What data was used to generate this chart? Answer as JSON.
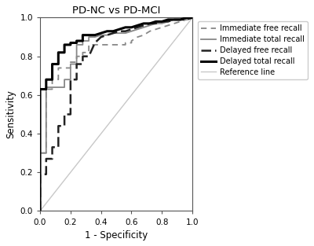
{
  "title": "PD-NC vs PD-MCI",
  "xlabel": "1 - Specificity",
  "ylabel": "Sensitivity",
  "xlim": [
    0.0,
    1.0
  ],
  "ylim": [
    0.0,
    1.0
  ],
  "xticks": [
    0.0,
    0.2,
    0.4,
    0.6,
    0.8,
    1.0
  ],
  "yticks": [
    0.0,
    0.2,
    0.4,
    0.6,
    0.8,
    1.0
  ],
  "reference_line_color": "#C8C8C8",
  "immediate_free_recall": {
    "x": [
      0.0,
      0.0,
      0.04,
      0.04,
      0.08,
      0.08,
      0.12,
      0.12,
      0.16,
      0.2,
      0.2,
      0.24,
      0.24,
      0.28,
      0.28,
      0.32,
      0.32,
      0.56,
      0.56,
      0.6,
      0.6,
      0.64,
      0.68,
      0.72,
      0.76,
      0.8,
      0.84,
      0.88,
      0.92,
      0.96,
      1.0
    ],
    "y": [
      0.0,
      0.3,
      0.3,
      0.63,
      0.63,
      0.68,
      0.68,
      0.74,
      0.74,
      0.74,
      0.77,
      0.77,
      0.8,
      0.8,
      0.82,
      0.82,
      0.86,
      0.86,
      0.87,
      0.87,
      0.88,
      0.9,
      0.91,
      0.93,
      0.94,
      0.95,
      0.96,
      0.97,
      0.98,
      0.99,
      1.0
    ],
    "color": "#888888",
    "linestyle": "dashed",
    "linewidth": 1.3,
    "label": "Immediate free recall"
  },
  "immediate_total_recall": {
    "x": [
      0.0,
      0.0,
      0.04,
      0.04,
      0.16,
      0.16,
      0.2,
      0.2,
      0.24,
      0.24,
      0.28,
      0.28,
      0.32,
      0.32,
      0.36,
      0.4,
      0.44,
      0.48,
      0.52,
      0.56,
      0.6,
      0.64,
      0.68,
      0.72,
      0.76,
      0.8,
      0.84,
      0.88,
      0.92,
      0.96,
      1.0
    ],
    "y": [
      0.0,
      0.3,
      0.3,
      0.64,
      0.64,
      0.68,
      0.68,
      0.76,
      0.76,
      0.86,
      0.86,
      0.88,
      0.88,
      0.9,
      0.9,
      0.91,
      0.91,
      0.92,
      0.92,
      0.92,
      0.93,
      0.94,
      0.95,
      0.96,
      0.97,
      0.97,
      0.98,
      0.99,
      0.99,
      0.99,
      1.0
    ],
    "color": "#888888",
    "linestyle": "solid",
    "linewidth": 1.3,
    "label": "Immediate total recall"
  },
  "delayed_free_recall": {
    "x": [
      0.0,
      0.0,
      0.04,
      0.04,
      0.08,
      0.08,
      0.12,
      0.12,
      0.16,
      0.16,
      0.2,
      0.2,
      0.24,
      0.24,
      0.28,
      0.28,
      0.32,
      0.36,
      0.4,
      0.44,
      0.48,
      0.52,
      0.56,
      0.6,
      0.64,
      0.68,
      0.72,
      0.76,
      0.8,
      0.84,
      0.88,
      0.92,
      0.96,
      1.0
    ],
    "y": [
      0.0,
      0.19,
      0.19,
      0.27,
      0.27,
      0.33,
      0.33,
      0.44,
      0.44,
      0.5,
      0.5,
      0.68,
      0.68,
      0.76,
      0.76,
      0.8,
      0.8,
      0.87,
      0.9,
      0.91,
      0.92,
      0.93,
      0.93,
      0.94,
      0.95,
      0.96,
      0.97,
      0.97,
      0.98,
      0.98,
      0.99,
      0.99,
      0.99,
      1.0
    ],
    "color": "#222222",
    "linestyle": "dashed",
    "linewidth": 1.8,
    "label": "Delayed free recall"
  },
  "delayed_total_recall": {
    "x": [
      0.0,
      0.0,
      0.04,
      0.04,
      0.08,
      0.08,
      0.12,
      0.12,
      0.16,
      0.16,
      0.2,
      0.2,
      0.24,
      0.24,
      0.28,
      0.28,
      0.32,
      0.36,
      0.4,
      0.44,
      0.48,
      0.52,
      0.56,
      0.6,
      0.64,
      0.68,
      0.72,
      0.76,
      0.8,
      0.84,
      0.88,
      0.92,
      0.96,
      1.0
    ],
    "y": [
      0.0,
      0.63,
      0.63,
      0.68,
      0.68,
      0.76,
      0.76,
      0.82,
      0.82,
      0.86,
      0.86,
      0.87,
      0.87,
      0.88,
      0.88,
      0.91,
      0.91,
      0.91,
      0.92,
      0.93,
      0.93,
      0.94,
      0.95,
      0.95,
      0.96,
      0.97,
      0.97,
      0.98,
      0.98,
      0.99,
      0.99,
      0.99,
      1.0,
      1.0
    ],
    "color": "#000000",
    "linestyle": "solid",
    "linewidth": 2.2,
    "label": "Delayed total recall"
  },
  "legend_fontsize": 7,
  "title_fontsize": 9.5,
  "axis_label_fontsize": 8.5,
  "tick_fontsize": 7.5,
  "plot_bg_color": "#FFFFFF",
  "figure_bg_color": "#FFFFFF"
}
